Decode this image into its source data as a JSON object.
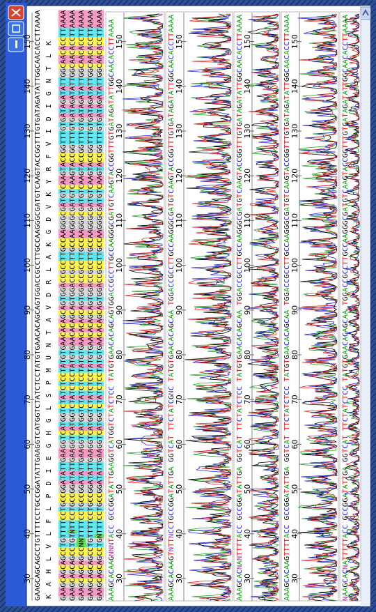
{
  "ruler": {
    "ticks": [
      "30",
      "40",
      "50",
      "60",
      "70",
      "80",
      "90",
      "100",
      "110",
      "120",
      "130",
      "140",
      "150"
    ]
  },
  "consensus": "GAAGCAGCAGCCTGTTTTCCTGCCGGATATTGAAGGTCATGGTCTATCTCCTATGTGAACACAGCAGTGGACCGCCTTGCCAAGGGCGATGTCAAGTACCGGTTTGTGATAGATATTGGCAACACCTTAAAA",
  "translation": "K A H L V L F L P D I E G H G L S P M U N T A V D R L A K G D V K Y R F V I D I G N T L K",
  "alignment": [
    "GAAGCAGCAGCCTGTTTTCCTGCCGGATATTGAAGGTCATGGTCTATCTCCTATGTGAACACAGCAGTGGACCGCCTTGCCAAGGGCGATGTCAAGTACCGGTTTGTGATAGATATTGGCAACACCTTAAAA",
    "GAAGCAGCAGCCTGTNTTCCTGCCGGATATTGAAGGTCATGGTCTATCTCCTATGTGAACACAGCAGTGGACCGCCTTGCCAAGGGCGATGTCAAGTACCGGTTTGTGATAGATATTGGCAACACCTTAAAA",
    "GAAGCAGCAGCCNNTTTTCCTGCCGGATATTGAAGGTCATGGTCTATCTCCTATGTGAACACAGCAGTGGACCGCCTTGCCAAGGGCGATGTCAAGTACCGGTTTGTGATAGATATTGGCAACACCTTAAAA",
    "GAAGCAGCAGCCTGTTTTCCTGCCGGATATTGAAGGTCATGGTCTATCTCCTATGTGAACACAGCAGTGGACCGCCTTGCCAAGGGCGATGTCAAGTACCGGTTTGTGATAGATATTGGCAACACCTTAAAA",
    "GAAGCAGCAGCCTGNTTTCCTGCCGGATATTGAAGGTCATGGTCTATCTCCTATGTGAACACAGCAGTGGACCGCCTTGCCAAGGGCGATGTCAAGTACCGGTTTGTGATAGATATTGGCAACACCTTAAAA"
  ],
  "reads": [
    "AAAGCACAAGNNNTACC GCCGGATATTGAAGGTCATGGTCTATCTCC TATGTGAACACAGCAGTGGACCGCCTTGCCAAGGGCGATGTCAAGTACCGGTTTGTGATAGATATTGGCAACACCTTAAAA",
    "AAAGCACAAGTNTTNCCTGCCGGATATTGA GGTCAT TTCTATCGNC TATGTGAACACAGCAA TGGACCGCCTTGCCAAGGGCGATGTCAAGTACCGGTTTGTGATAGATATTGGCAACACCTTAAAA",
    "AAAGCACNANTTTTACC GCCGGATATTGA GGTCAT TTCTATCTCC TATGTGAACACAGCAA TGGACCGCCTTGCCAAGGGCGATGTCAAGTACCGGTTTGTGATAGATATTGGCAACACCTTAAAA",
    "AAAGCACAAGTTTTACC GCCGGATATTGA GGTCAT TTCTATCTCC TATGTGAACACAGCAA TGGACCGCCTTGCCAAGGGCGATGTCAAGTACCGGTTTGTGATAGATATTGGCAACACCTTAAAA",
    "NAAGCACNATTTTTACC GCCGGATATTGA GGTCAT TTCTATCTCC TATGTGAACACAGCAA TGGACCGCCTTGCCAAGGGCGATGTCAAGTACCGGTTTGTGATAGATATTGGCAACACCTTAAAA"
  ]
}
